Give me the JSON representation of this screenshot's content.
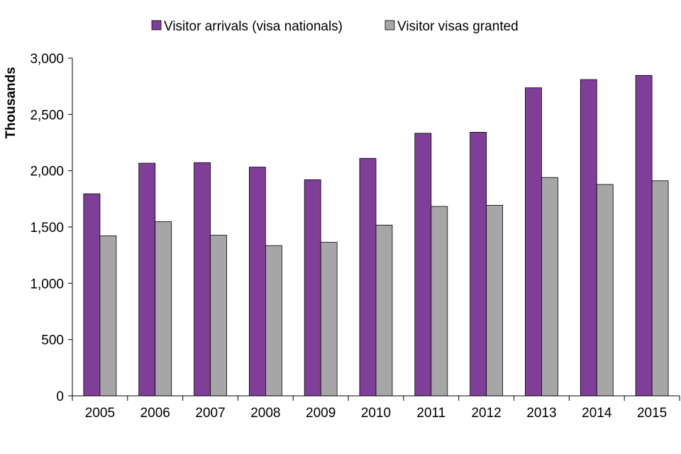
{
  "chart_data": {
    "type": "bar",
    "title": "",
    "xlabel": "",
    "ylabel": "Thousands",
    "categories": [
      "2005",
      "2006",
      "2007",
      "2008",
      "2009",
      "2010",
      "2011",
      "2012",
      "2013",
      "2014",
      "2015"
    ],
    "series": [
      {
        "name": "Visitor arrivals (visa nationals)",
        "color": "#7f3f98",
        "values": [
          1795,
          2067,
          2072,
          2032,
          1920,
          2110,
          2333,
          2342,
          2737,
          2810,
          2847
        ]
      },
      {
        "name": "Visitor visas granted",
        "color": "#a6a6a6",
        "values": [
          1422,
          1547,
          1427,
          1335,
          1364,
          1517,
          1683,
          1693,
          1940,
          1878,
          1911
        ]
      }
    ],
    "ylim": [
      0,
      3000
    ],
    "yticks": [
      0,
      500,
      1000,
      1500,
      2000,
      2500,
      3000
    ],
    "ytick_labels": [
      "0",
      "500",
      "1,000",
      "1,500",
      "2,000",
      "2,500",
      "3,000"
    ],
    "grid": false,
    "legend_position": "top-center"
  }
}
